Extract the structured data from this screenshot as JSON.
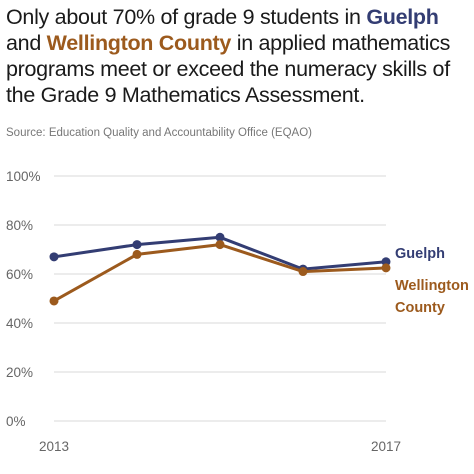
{
  "headline": {
    "part1": "Only about 70% of grade 9 students in ",
    "highlight1": "Guelph",
    "part2": " and ",
    "highlight2": "Wellington County",
    "part3": " in applied mathematics programs meet or exceed the numeracy skills of the Grade 9 Mathematics Assessment."
  },
  "source": "Source: Education Quality and Accountability Office (EQAO)",
  "colors": {
    "guelph": "#333d73",
    "wellington": "#9c5a1d",
    "grid": "#d9d9d9",
    "text": "#1a1a1a"
  },
  "chart_data": {
    "type": "line",
    "title": "",
    "xlabel": "",
    "ylabel": "",
    "x": [
      2013,
      2014,
      2015,
      2016,
      2017
    ],
    "x_tick_labels": [
      "2013",
      "2017"
    ],
    "y_ticks": [
      "0%",
      "20%",
      "40%",
      "60%",
      "80%",
      "100%"
    ],
    "ylim": [
      0,
      100
    ],
    "grid": true,
    "legend": "direct labels at right end of lines",
    "series": [
      {
        "name": "Guelph",
        "label_lines": [
          "Guelph"
        ],
        "color": "#333d73",
        "values": [
          67,
          72,
          75,
          62,
          65
        ]
      },
      {
        "name": "Wellington County",
        "label_lines": [
          "Wellington",
          "County"
        ],
        "color": "#9c5a1d",
        "values": [
          49,
          68,
          72,
          61,
          62.5
        ]
      }
    ]
  }
}
